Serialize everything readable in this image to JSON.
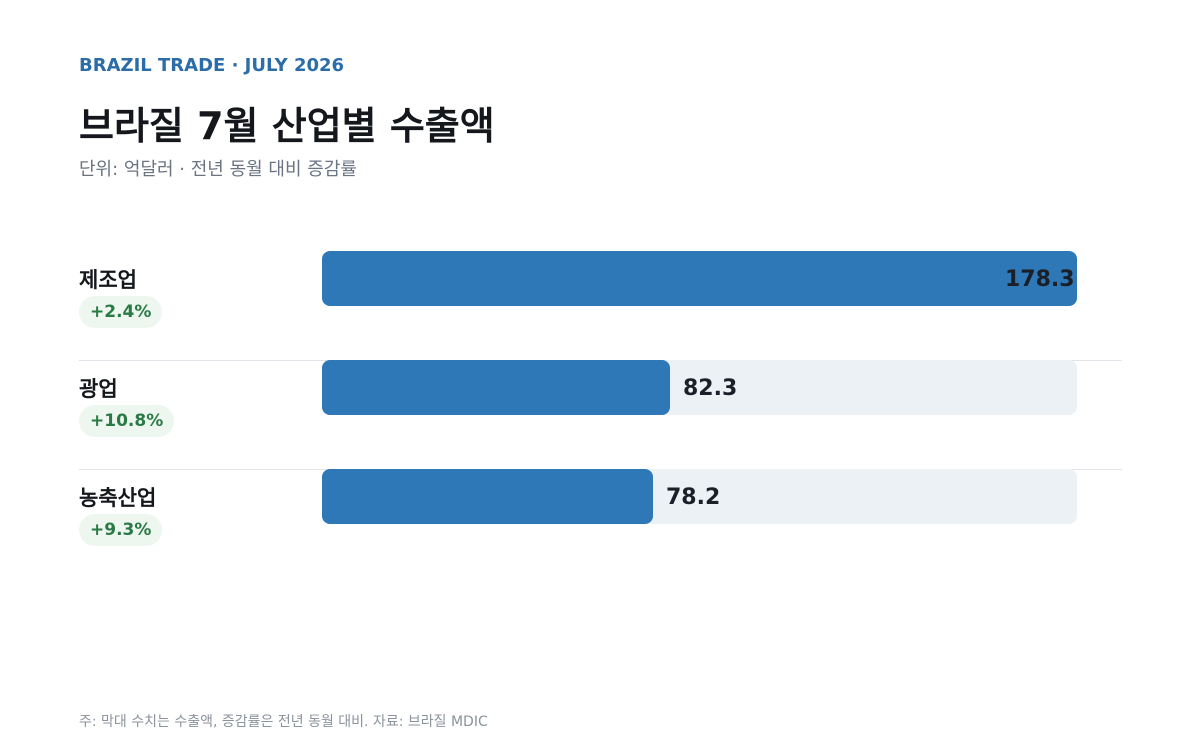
{
  "header": {
    "eyebrow": "BRAZIL TRADE · JULY 2026",
    "title": "브라질 7월 산업별 수출액",
    "subtitle": "단위: 억달러 · 전년 동월 대비 증감률"
  },
  "chart_data": {
    "type": "bar",
    "orientation": "horizontal",
    "title": "브라질 7월 산업별 수출액",
    "categories": [
      "제조업",
      "광업",
      "농축산업"
    ],
    "values": [
      178.3,
      82.3,
      78.2
    ],
    "value_labels": [
      "178.3",
      "82.3",
      "78.2"
    ],
    "changes": [
      "+2.4%",
      "+10.8%",
      "+9.3%"
    ],
    "xlim": [
      0,
      178.3
    ],
    "grid": false,
    "colors": {
      "bar": "#2e78b7",
      "track": "#ecf1f6",
      "badge_text": "#2a7a45",
      "accent": "#2b6ca9"
    }
  },
  "footer": {
    "note": "주: 막대 수치는 수출액, 증감률은 전년 동월 대비. 자료: 브라질 MDIC"
  }
}
